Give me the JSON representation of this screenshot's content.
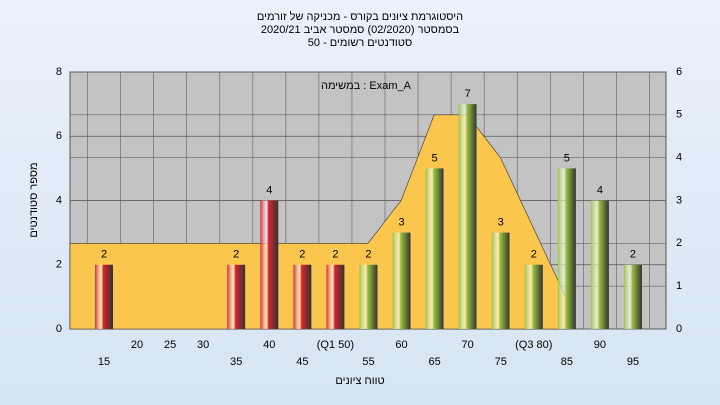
{
  "chart_data": {
    "type": "bar",
    "title_lines": [
      "היסטוגרמת ציונים בקורס - מכניקה של זורמים",
      "בסמסטר  (02/2020)  סמסטר אביב 2020/21",
      "סטודנטים רשומים - 50"
    ],
    "annotation": "במשימה : Exam_A",
    "x_label": "טווח ציונים",
    "y_label": "מספר סטודנטים",
    "categories": [
      "15",
      "20",
      "25",
      "30",
      "35",
      "40",
      "45",
      "(Q1 50)",
      "55",
      "60",
      "65",
      "70",
      "75",
      "(Q3 80)",
      "85",
      "90",
      "95"
    ],
    "values": [
      2,
      0,
      0,
      0,
      2,
      4,
      2,
      2,
      2,
      3,
      5,
      7,
      3,
      2,
      5,
      4,
      2
    ],
    "colors": [
      "#d9262c",
      "#d9262c",
      "#d9262c",
      "#d9262c",
      "#d9262c",
      "#d9262c",
      "#d9262c",
      "#d9262c",
      "#9bc43c",
      "#9bc43c",
      "#9bc43c",
      "#9bc43c",
      "#9bc43c",
      "#9bc43c",
      "#9bc43c",
      "#9bc43c",
      "#9bc43c"
    ],
    "curve": {
      "color": "#fbc64e",
      "axis": "y2",
      "x": [
        10,
        55,
        60,
        65,
        70,
        75,
        85
      ],
      "values": [
        2,
        2,
        3,
        5,
        5,
        4,
        0.7
      ]
    },
    "xlim": [
      10,
      100
    ],
    "ylim": [
      0,
      8
    ],
    "yticks": [
      0,
      2,
      4,
      6,
      8
    ],
    "y2lim": [
      0,
      6
    ],
    "y2ticks": [
      0,
      1,
      2,
      3,
      4,
      5,
      6
    ],
    "grid": true
  }
}
